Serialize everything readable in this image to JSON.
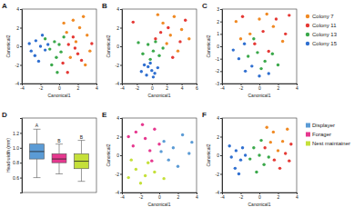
{
  "chart_data": [
    {
      "type": "scatter",
      "title": "A",
      "x_label": "Canonical1",
      "y_label": "Canonical2",
      "xlim": [
        -4,
        4
      ],
      "ylim": [
        -4,
        4
      ],
      "xticks": [
        -4,
        -2,
        0,
        2,
        4
      ],
      "yticks": [
        -4,
        -2,
        0,
        2,
        4
      ],
      "series": [
        {
          "color": "#f08a24",
          "x": [
            1.5,
            2.2,
            0.8,
            3.0,
            1.8,
            2.6,
            0.5,
            3.3,
            1.2,
            2.8
          ],
          "y": [
            2.8,
            2.0,
            1.5,
            1.2,
            0.5,
            3.2,
            2.5,
            -0.5,
            -1.2,
            -2.0
          ]
        },
        {
          "color": "#e53935",
          "x": [
            1.0,
            2.0,
            0.4,
            1.5,
            3.5,
            2.4,
            0.9,
            1.7
          ],
          "y": [
            0.2,
            -0.8,
            -1.8,
            1.0,
            0.3,
            -1.5,
            -2.8,
            -0.2
          ]
        },
        {
          "color": "#3aa84a",
          "x": [
            -0.5,
            -1.0,
            0.2,
            -0.3,
            0.5,
            -1.5,
            -0.8,
            0.0,
            -0.2
          ],
          "y": [
            0.5,
            -0.3,
            -0.6,
            -1.2,
            1.0,
            0.8,
            -2.0,
            0.2,
            -2.8
          ]
        },
        {
          "color": "#2f6fd0",
          "x": [
            -2.5,
            -2.0,
            -3.0,
            -1.8,
            -2.6,
            -1.5,
            -3.2,
            -2.2,
            -1.2
          ],
          "y": [
            0.6,
            0.0,
            -0.5,
            1.2,
            -1.0,
            -0.4,
            0.3,
            -1.6,
            0.2
          ]
        }
      ]
    },
    {
      "type": "scatter",
      "title": "B",
      "x_label": "Canonical1",
      "y_label": "Canonical2",
      "xlim": [
        -4,
        6
      ],
      "ylim": [
        -4,
        4
      ],
      "xticks": [
        -4,
        -2,
        0,
        2,
        4,
        6
      ],
      "yticks": [
        -4,
        -2,
        0,
        2,
        4
      ],
      "series": [
        {
          "color": "#f08a24",
          "x": [
            1.5,
            3.0,
            4.0,
            2.5,
            5.0,
            0.8,
            3.5,
            2.0
          ],
          "y": [
            2.5,
            3.2,
            1.8,
            1.2,
            0.8,
            3.4,
            -0.5,
            0.3
          ]
        },
        {
          "color": "#e53935",
          "x": [
            2.2,
            3.8,
            1.2,
            4.5,
            2.8,
            0.5,
            -2.5
          ],
          "y": [
            2.0,
            0.5,
            1.5,
            2.8,
            -1.2,
            0.8,
            2.6
          ]
        },
        {
          "color": "#3aa84a",
          "x": [
            0.2,
            -0.5,
            1.0,
            -1.2,
            0.5,
            -0.2,
            1.5,
            -1.8
          ],
          "y": [
            -0.5,
            0.2,
            -1.0,
            -0.8,
            0.5,
            -1.4,
            -0.2,
            0.4
          ]
        },
        {
          "color": "#2f6fd0",
          "x": [
            -0.5,
            0.0,
            -1.0,
            0.4,
            -0.2,
            -1.4,
            0.8,
            -0.7,
            0.2
          ],
          "y": [
            -2.2,
            -2.6,
            -2.0,
            -2.9,
            -1.8,
            -2.7,
            -2.3,
            -3.1,
            -3.3
          ]
        }
      ]
    },
    {
      "type": "scatter",
      "title": "C",
      "x_label": "Canonical1",
      "y_label": "Canonical2",
      "xlim": [
        -4,
        4
      ],
      "ylim": [
        -3,
        3
      ],
      "xticks": [
        -4,
        -2,
        0,
        2,
        4
      ],
      "yticks": [
        -3,
        -2,
        -1,
        0,
        1,
        2,
        3
      ],
      "legend": "right",
      "series": [
        {
          "name": "Colony 7",
          "color": "#f08a24",
          "x": [
            -2.5,
            0.0,
            1.5,
            -1.0,
            2.5,
            0.8,
            -2.0
          ],
          "y": [
            2.0,
            2.2,
            1.6,
            1.0,
            0.4,
            2.6,
            0.6
          ]
        },
        {
          "name": "Colony 11",
          "color": "#e53935",
          "x": [
            -1.8,
            0.4,
            1.8,
            2.8,
            -0.5,
            1.0,
            3.2
          ],
          "y": [
            2.4,
            1.2,
            2.2,
            1.0,
            0.2,
            -0.4,
            2.5
          ]
        },
        {
          "name": "Colony 13",
          "color": "#3aa84a",
          "x": [
            -0.2,
            0.6,
            -1.2,
            1.4,
            0.2,
            -0.6,
            2.0
          ],
          "y": [
            -0.5,
            -1.2,
            -0.8,
            -0.6,
            -1.8,
            0.6,
            -1.5
          ]
        },
        {
          "name": "Colony 15",
          "color": "#2f6fd0",
          "x": [
            -2.2,
            -1.5,
            -0.8,
            -2.8,
            0.0,
            -1.6,
            1.0
          ],
          "y": [
            -1.0,
            -2.0,
            -1.6,
            -0.3,
            -2.4,
            0.2,
            -2.2
          ]
        }
      ]
    },
    {
      "type": "box",
      "title": "D",
      "y_label": "Head width (mm)",
      "categories": [
        "Displayer",
        "Forager",
        "Nest maintainer"
      ],
      "colors": [
        "#5b9bd5",
        "#e6388f",
        "#c5e03a"
      ],
      "whisker_low": [
        0.6,
        0.65,
        0.55
      ],
      "q1": [
        0.85,
        0.8,
        0.72
      ],
      "median": [
        0.95,
        0.85,
        0.82
      ],
      "q3": [
        1.05,
        0.92,
        0.92
      ],
      "whisker_high": [
        1.25,
        1.05,
        1.1
      ],
      "annotations": [
        "A",
        "B",
        "B"
      ],
      "ylim": [
        0.4,
        1.4
      ],
      "yticks": [
        0.6,
        0.8,
        {
          "value": 1,
          "label": "1.0"
        },
        1.2
      ],
      "tick_labels": "y",
      "legend": "right"
    },
    {
      "type": "scatter",
      "title": "E",
      "x_label": "Canonical1",
      "y_label": "Canonical2",
      "xlim": [
        -4,
        4
      ],
      "ylim": [
        -4,
        4
      ],
      "xticks": [
        -4,
        -2,
        0,
        2,
        4
      ],
      "yticks": [
        -4,
        -2,
        0,
        2,
        4
      ],
      "series": [
        {
          "color": "#5b9bd5",
          "x": [
            0.5,
            1.5,
            2.5,
            3.2,
            1.0,
            2.0,
            3.5,
            0.2
          ],
          "y": [
            1.5,
            0.8,
            2.2,
            0.2,
            -0.5,
            -1.2,
            1.4,
            0.4
          ]
        },
        {
          "color": "#e6388f",
          "x": [
            -2.5,
            -1.5,
            -0.5,
            -2.8,
            -1.0,
            -1.8,
            0.0,
            -3.3,
            -0.8
          ],
          "y": [
            2.5,
            1.8,
            2.8,
            1.0,
            0.5,
            3.3,
            1.2,
            2.0,
            -0.6
          ]
        },
        {
          "color": "#c5e03a",
          "x": [
            -2.5,
            -1.5,
            -3.0,
            -0.5,
            -2.0,
            0.5,
            -1.2,
            -3.3
          ],
          "y": [
            -1.5,
            -2.2,
            -0.5,
            -1.8,
            -3.0,
            -2.5,
            -0.8,
            -2.4
          ]
        }
      ]
    },
    {
      "type": "scatter",
      "title": "F",
      "x_label": "Canonical1",
      "y_label": "Canonical2",
      "xlim": [
        -4,
        4
      ],
      "ylim": [
        -4,
        4
      ],
      "xticks": [
        -4,
        -2,
        0,
        2,
        4
      ],
      "yticks": [
        -4,
        -2,
        0,
        2,
        4
      ],
      "series": [
        {
          "color": "#f08a24",
          "x": [
            1.5,
            2.5,
            0.8,
            3.0,
            2.0,
            1.2
          ],
          "y": [
            2.5,
            1.5,
            3.0,
            2.8,
            0.5,
            1.4
          ]
        },
        {
          "color": "#e53935",
          "x": [
            2.8,
            1.6,
            3.4,
            0.6,
            2.2,
            3.2
          ],
          "y": [
            0.2,
            -0.5,
            1.2,
            0.8,
            -1.4,
            -0.6
          ]
        },
        {
          "color": "#3aa84a",
          "x": [
            0.0,
            -0.6,
            0.5,
            -1.0,
            0.2,
            -0.3,
            1.0
          ],
          "y": [
            0.0,
            0.8,
            -1.0,
            -0.4,
            1.6,
            -1.8,
            -0.2
          ]
        },
        {
          "color": "#2f6fd0",
          "x": [
            -2.5,
            -2.0,
            -3.0,
            -1.8,
            -2.6,
            -1.5,
            -3.2,
            -2.2
          ],
          "y": [
            0.5,
            -0.5,
            -0.2,
            0.8,
            -1.4,
            0.0,
            1.0,
            -2.0
          ]
        }
      ]
    }
  ]
}
